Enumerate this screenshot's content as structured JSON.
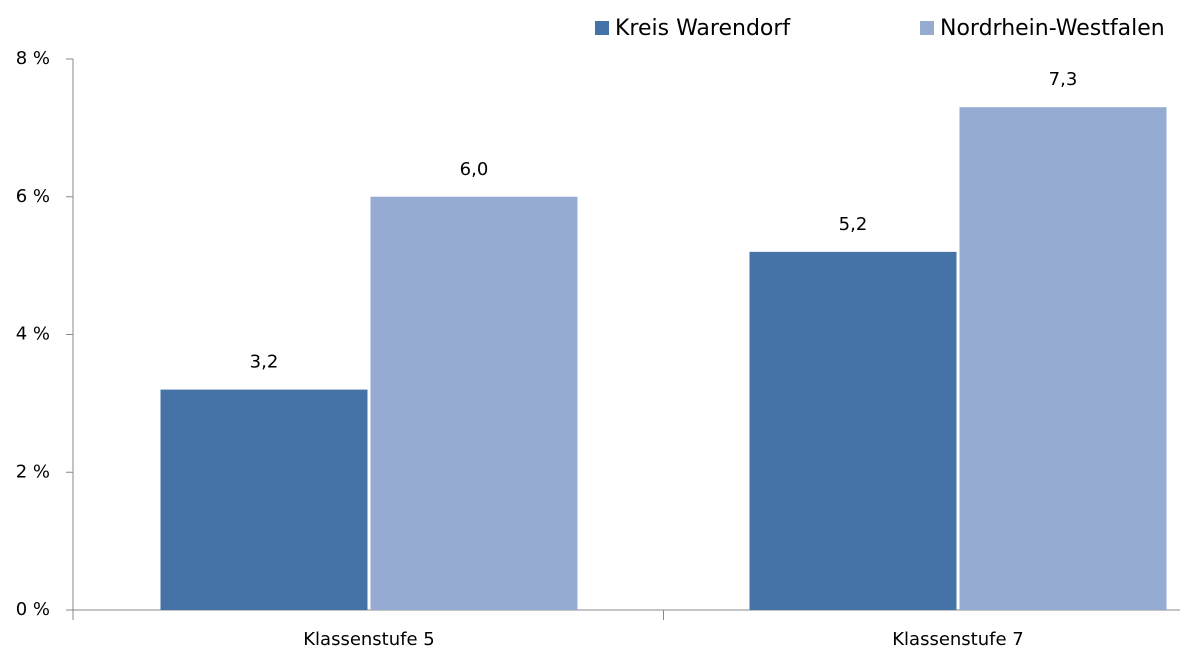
{
  "chart_data": {
    "type": "bar",
    "categories": [
      "Klassenstufe 5",
      "Klassenstufe 7"
    ],
    "series": [
      {
        "name": "Kreis Warendorf",
        "color": "#4573a7",
        "values": [
          3.2,
          5.2
        ],
        "value_labels": [
          "3,2",
          "5,2"
        ]
      },
      {
        "name": "Nordrhein-Westfalen",
        "color": "#95abd2",
        "values": [
          6.0,
          7.3
        ],
        "value_labels": [
          "6,0",
          "7,3"
        ]
      }
    ],
    "ylim": [
      0,
      8
    ],
    "yticks": [
      {
        "value": 0,
        "label": "0 %"
      },
      {
        "value": 2,
        "label": "2 %"
      },
      {
        "value": 4,
        "label": "4 %"
      },
      {
        "value": 6,
        "label": "6 %"
      },
      {
        "value": 8,
        "label": "8 %"
      }
    ],
    "legend": "top-right"
  }
}
